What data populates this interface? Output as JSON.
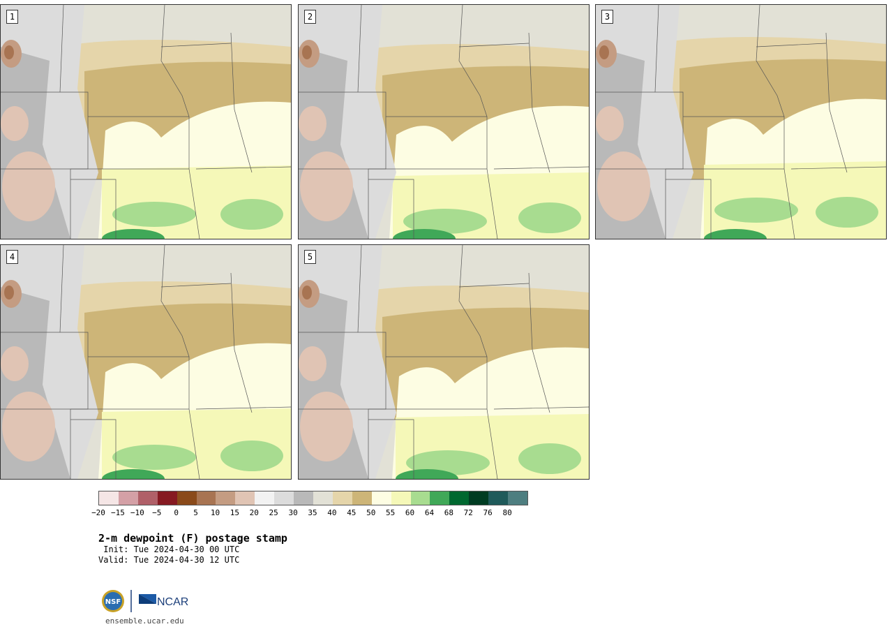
{
  "panels": [
    {
      "label": "1"
    },
    {
      "label": "2"
    },
    {
      "label": "3"
    },
    {
      "label": "4"
    },
    {
      "label": "5"
    }
  ],
  "colorbar": {
    "colors": [
      "#f5e6e6",
      "#d4a0a6",
      "#b06068",
      "#861a22",
      "#8a4a1a",
      "#a87452",
      "#c49c82",
      "#e0c4b4",
      "#f2f2f2",
      "#dcdcdc",
      "#b9b9b9",
      "#e2e1d6",
      "#e5d5aa",
      "#cdb578",
      "#fdfde3",
      "#f5f8b8",
      "#a8dc90",
      "#40a858",
      "#006830",
      "#003c22",
      "#1f5a5a",
      "#4e7e80"
    ],
    "tick_labels": [
      "−20",
      "−15",
      "−10",
      "−5",
      "0",
      "5",
      "10",
      "15",
      "20",
      "25",
      "30",
      "35",
      "40",
      "45",
      "50",
      "55",
      "60",
      "64",
      "68",
      "72",
      "76",
      "80"
    ]
  },
  "title": "2-m dewpoint (F) postage stamp",
  "init_text": " Init: Tue 2024-04-30 00 UTC",
  "valid_text": "Valid: Tue 2024-04-30 12 UTC",
  "logos": {
    "left": "NSF",
    "right": "NCAR"
  },
  "url": "ensemble.ucar.edu"
}
